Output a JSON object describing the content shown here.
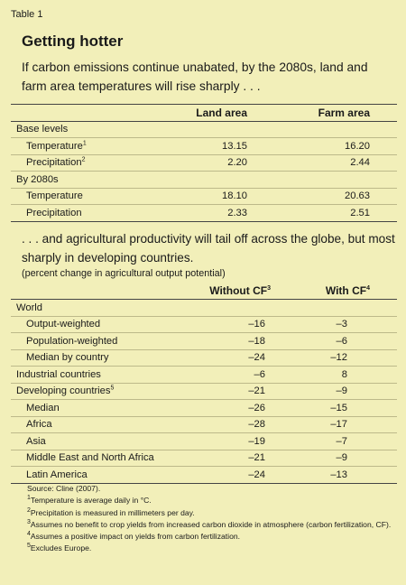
{
  "table_label": "Table 1",
  "title": "Getting hotter",
  "intro": "If carbon emissions continue unabated, by the 2080s, land and farm area temperatures will rise sharply . . .",
  "table1": {
    "headers": [
      "",
      "Land area",
      "Farm area"
    ],
    "base_label": "Base levels",
    "base_rows": [
      {
        "label": "Temperature",
        "sup": "1",
        "land": "13.15",
        "farm": "16.20"
      },
      {
        "label": "Precipitation",
        "sup": "2",
        "land": "2.20",
        "farm": "2.44"
      }
    ],
    "future_label": "By 2080s",
    "future_rows": [
      {
        "label": "Temperature",
        "land": "18.10",
        "farm": "20.63"
      },
      {
        "label": "Precipitation",
        "land": "2.33",
        "farm": "2.51"
      }
    ]
  },
  "second_intro": ". . . and agricultural productivity will tail off across the globe, but most sharply in developing countries.",
  "unit_note": "(percent change in agricultural output potential)",
  "table2": {
    "col_without": "Without CF",
    "col_without_sup": "3",
    "col_with": "With CF",
    "col_with_sup": "4",
    "world_label": "World",
    "world_rows": [
      {
        "label": "Output-weighted",
        "without": "–16",
        "with": "–3"
      },
      {
        "label": "Population-weighted",
        "without": "–18",
        "with": "–6"
      },
      {
        "label": "Median by country",
        "without": "–24",
        "with": "–12"
      }
    ],
    "industrial": {
      "label": "Industrial countries",
      "without": "–6",
      "with": "8"
    },
    "developing": {
      "label": "Developing countries",
      "sup": "5",
      "without": "–21",
      "with": "–9"
    },
    "developing_rows": [
      {
        "label": "Median",
        "without": "–26",
        "with": "–15"
      },
      {
        "label": "Africa",
        "without": "–28",
        "with": "–17"
      },
      {
        "label": "Asia",
        "without": "–19",
        "with": "–7"
      },
      {
        "label": "Middle East and North Africa",
        "without": "–21",
        "with": "–9"
      },
      {
        "label": "Latin America",
        "without": "–24",
        "with": "–13"
      }
    ]
  },
  "notes": {
    "source": "Source: Cline (2007).",
    "n1": "Temperature is average daily in °C.",
    "n2": "Precipitation is measured in millimeters per day.",
    "n3": "Assumes no benefit to crop yields from increased carbon dioxide in atmosphere (carbon fertilization, CF).",
    "n4": "Assumes a positive impact on yields from carbon fertilization.",
    "n5": "Excludes Europe."
  }
}
